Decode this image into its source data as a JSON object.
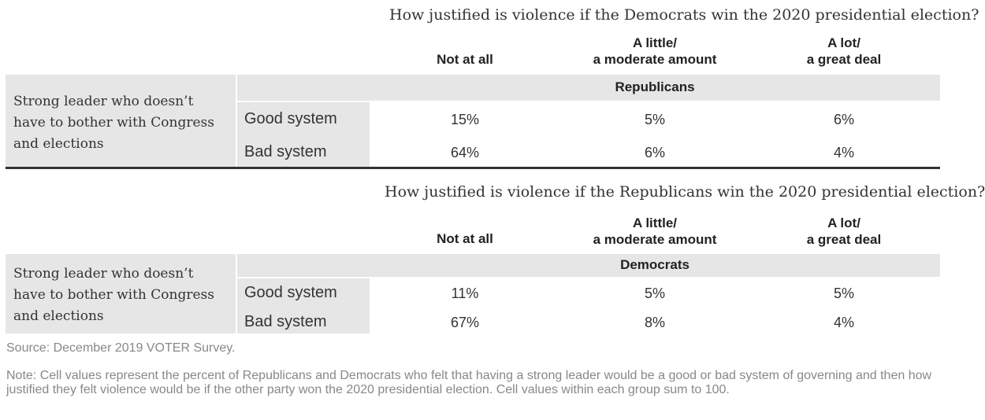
{
  "chart_data": {
    "type": "table",
    "columns": [
      "Not at all",
      "A little/ a moderate amount",
      "A lot/ a great deal"
    ],
    "row_label": "Strong leader who doesn’t have to bother with Congress and elections",
    "panels": [
      {
        "title": "How justified is violence if the Democrats win the 2020 presidential election?",
        "group": "Republicans",
        "rows": [
          {
            "label": "Good system",
            "values": [
              "15%",
              "5%",
              "6%"
            ]
          },
          {
            "label": "Bad system",
            "values": [
              "64%",
              "6%",
              "4%"
            ]
          }
        ]
      },
      {
        "title": "How justified is violence if the Republicans win the 2020 presidential election?",
        "group": "Democrats",
        "rows": [
          {
            "label": "Good system",
            "values": [
              "11%",
              "5%",
              "5%"
            ]
          },
          {
            "label": "Bad system",
            "values": [
              "67%",
              "8%",
              "4%"
            ]
          }
        ]
      }
    ],
    "col_head_lines": [
      [
        "Not at all"
      ],
      [
        "A little/",
        "a moderate amount"
      ],
      [
        "A lot/",
        "a great deal"
      ]
    ],
    "row_label_lines": [
      "Strong leader who doesn’t",
      "have to bother with Congress",
      "and elections"
    ]
  },
  "footer": {
    "source": "Source: December 2019 VOTER Survey.",
    "note": "Note: Cell values represent the percent of Republicans and Democrats who felt that having a strong leader would be a good or bad system of governing and then how justified they felt violence would be if the other party won the 2020 presidential election. Cell values within each group sum to 100."
  }
}
